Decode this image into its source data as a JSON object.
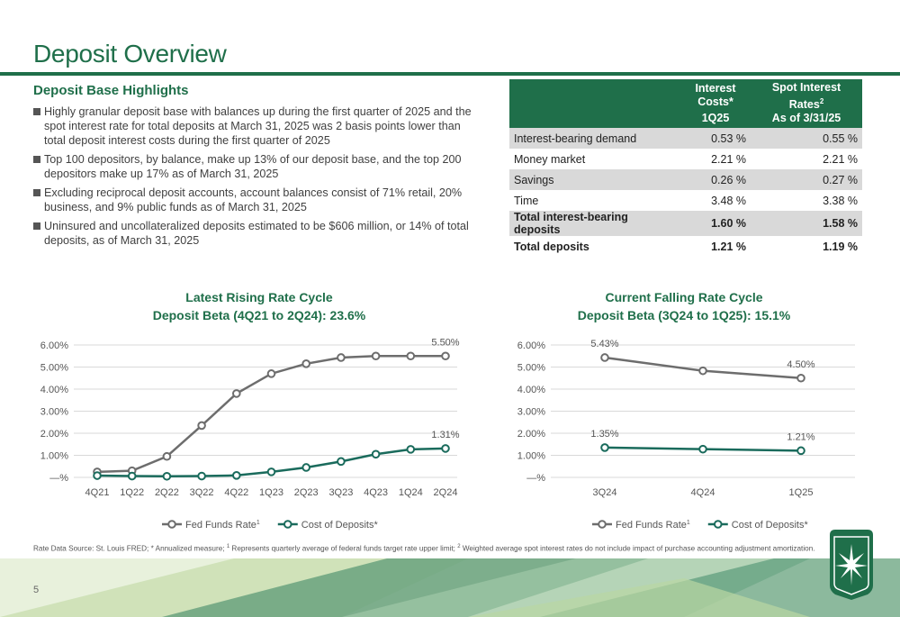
{
  "page": {
    "title": "Deposit Overview",
    "number": "5"
  },
  "highlights": {
    "heading": "Deposit Base Highlights",
    "bullets": [
      "Highly granular deposit base with balances up during the first quarter of 2025 and the spot interest rate for total deposits at March 31, 2025 was 2 basis points lower than total deposit interest costs during the first quarter of 2025",
      "Top 100 depositors, by balance, make up 13% of our deposit base, and the top 200 depositors make up 17% as of March 31, 2025",
      "Excluding reciprocal deposit accounts, account balances consist of 71% retail, 20% business, and 9% public funds as of March 31, 2025",
      "Uninsured and uncollateralized deposits estimated to be $606 million, or 14% of total deposits, as of March 31, 2025"
    ]
  },
  "rates_table": {
    "header": {
      "col1_line1": "Interest",
      "col1_line2": "Costs*",
      "col1_line3": "1Q25",
      "col2_line1": "Spot Interest",
      "col2_line2": "Rates",
      "col2_sup": "2",
      "col2_line3": "As of 3/31/25"
    },
    "rows": [
      {
        "label": "Interest-bearing demand",
        "cost": "0.53 %",
        "spot": "0.55 %"
      },
      {
        "label": "Money market",
        "cost": "2.21 %",
        "spot": "2.21 %"
      },
      {
        "label": "Savings",
        "cost": "0.26 %",
        "spot": "0.27 %"
      },
      {
        "label": "Time",
        "cost": "3.48 %",
        "spot": "3.38 %"
      },
      {
        "label": "Total interest-bearing deposits",
        "cost": "1.60 %",
        "spot": "1.58 %"
      },
      {
        "label": "Total deposits",
        "cost": "1.21 %",
        "spot": "1.19 %"
      }
    ]
  },
  "colors": {
    "brand_green": "#1f6f4a",
    "fed_funds_line": "#6d6d6d",
    "cost_of_deposits_line": "#1a6b5c",
    "grid": "#d9d9d9"
  },
  "chart_data": [
    {
      "type": "line",
      "title": "Latest Rising Rate Cycle",
      "subtitle": "Deposit Beta (4Q21 to 2Q24): 23.6%",
      "categories": [
        "4Q21",
        "1Q22",
        "2Q22",
        "3Q22",
        "4Q22",
        "1Q23",
        "2Q23",
        "3Q23",
        "4Q23",
        "1Q24",
        "2Q24"
      ],
      "y_ticks": [
        "—%",
        "1.00%",
        "2.00%",
        "3.00%",
        "4.00%",
        "5.00%",
        "6.00%"
      ],
      "ylim": [
        0,
        6
      ],
      "grid": true,
      "legend_position": "bottom",
      "series": [
        {
          "name": "Fed Funds Rate",
          "name_sup": "1",
          "color": "#6d6d6d",
          "values": [
            0.25,
            0.3,
            0.95,
            2.35,
            3.8,
            4.7,
            5.15,
            5.43,
            5.5,
            5.5,
            5.5
          ]
        },
        {
          "name": "Cost of Deposits*",
          "color": "#1a6b5c",
          "values": [
            0.08,
            0.06,
            0.05,
            0.06,
            0.09,
            0.25,
            0.45,
            0.72,
            1.05,
            1.27,
            1.31
          ]
        }
      ],
      "data_labels": [
        {
          "series": 0,
          "index": 10,
          "text": "5.50%"
        },
        {
          "series": 1,
          "index": 10,
          "text": "1.31%"
        }
      ]
    },
    {
      "type": "line",
      "title": "Current Falling Rate Cycle",
      "subtitle": "Deposit Beta (3Q24 to 1Q25): 15.1%",
      "categories": [
        "3Q24",
        "4Q24",
        "1Q25"
      ],
      "y_ticks": [
        "—%",
        "1.00%",
        "2.00%",
        "3.00%",
        "4.00%",
        "5.00%",
        "6.00%"
      ],
      "ylim": [
        0,
        6
      ],
      "grid": true,
      "legend_position": "bottom",
      "series": [
        {
          "name": "Fed Funds Rate",
          "name_sup": "1",
          "color": "#6d6d6d",
          "values": [
            5.43,
            4.83,
            4.5
          ]
        },
        {
          "name": "Cost of Deposits*",
          "color": "#1a6b5c",
          "values": [
            1.35,
            1.28,
            1.21
          ]
        }
      ],
      "data_labels": [
        {
          "series": 0,
          "index": 0,
          "text": "5.43%"
        },
        {
          "series": 0,
          "index": 2,
          "text": "4.50%"
        },
        {
          "series": 1,
          "index": 0,
          "text": "1.35%"
        },
        {
          "series": 1,
          "index": 2,
          "text": "1.21%"
        }
      ]
    }
  ],
  "footnote": {
    "part1": "Rate Data Source: St. Louis FRED; * Annualized measure; ",
    "sup1": "1",
    "part2": " Represents quarterly average of federal funds target rate upper limit; ",
    "sup2": "2",
    "part3": " Weighted average spot interest rates do not include impact of purchase accounting adjustment amortization."
  },
  "logo": {
    "icon": "star-burst-logo-icon"
  }
}
